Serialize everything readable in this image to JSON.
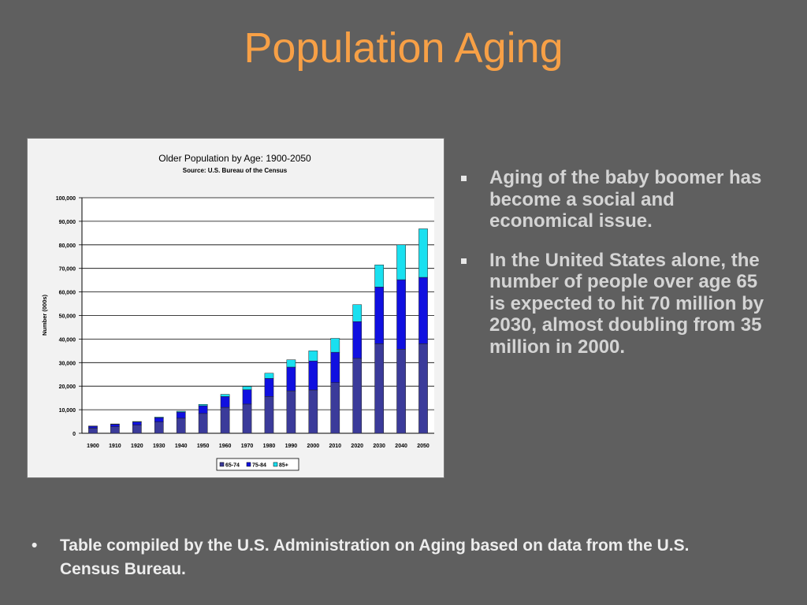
{
  "slide": {
    "title": "Population Aging",
    "bullets": [
      "Aging of the baby boomer has become a social and economical issue.",
      "In the United States alone, the number of people over age 65 is expected to hit 70 million by 2030, almost doubling from 35 million in 2000."
    ],
    "footnote_bullet": "•",
    "footnote": "Table compiled by the U.S. Administration on Aging based on data from the U.S. Census Bureau."
  },
  "chart_data": {
    "type": "bar",
    "stacked": true,
    "title": "Older Population by Age: 1900-2050",
    "subtitle": "Source: U.S. Bureau of the Census",
    "xlabel": "",
    "ylabel": "Number (000s)",
    "ylim": [
      0,
      100000
    ],
    "yticks": [
      0,
      10000,
      20000,
      30000,
      40000,
      50000,
      60000,
      70000,
      80000,
      90000,
      100000
    ],
    "ytick_labels": [
      "0",
      "10,000",
      "20,000",
      "30,000",
      "40,000",
      "50,000",
      "60,000",
      "70,000",
      "80,000",
      "90,000",
      "100,000"
    ],
    "grid": true,
    "legend_position": "bottom",
    "categories": [
      "1900",
      "1910",
      "1920",
      "1930",
      "1940",
      "1950",
      "1960",
      "1970",
      "1980",
      "1990",
      "2000",
      "2010",
      "2020",
      "2030",
      "2040",
      "2050"
    ],
    "series": [
      {
        "name": "65-74",
        "color": "#3b3b9a",
        "values": [
          2200,
          2800,
          3500,
          4800,
          6400,
          8400,
          11000,
          12400,
          15600,
          18000,
          18400,
          21500,
          31800,
          38000,
          35700,
          38000
        ]
      },
      {
        "name": "75-84",
        "color": "#1010e0",
        "values": [
          800,
          1000,
          1300,
          1800,
          2600,
          3300,
          4600,
          6100,
          7700,
          10100,
          12300,
          12900,
          15600,
          24100,
          29500,
          28200
        ]
      },
      {
        "name": "85+",
        "color": "#19e0f0",
        "values": [
          100,
          170,
          210,
          270,
          360,
          580,
          930,
          1400,
          2200,
          3100,
          4300,
          5900,
          7200,
          9400,
          14800,
          20600
        ]
      }
    ]
  }
}
